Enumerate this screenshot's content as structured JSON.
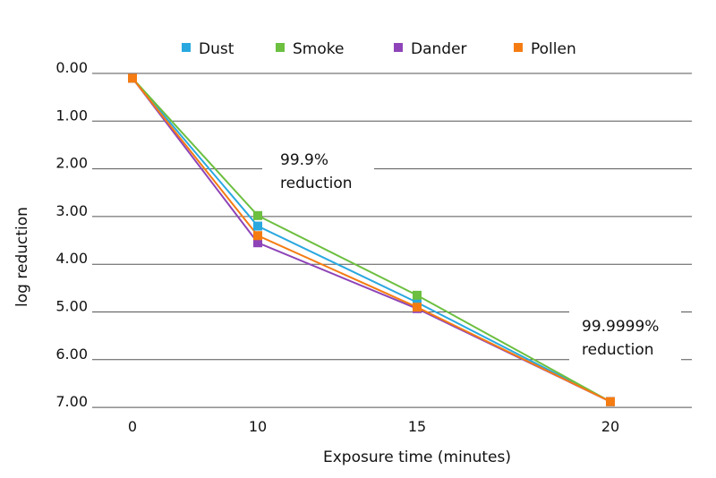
{
  "chart_data": {
    "type": "line",
    "title": "",
    "xlabel": "Exposure time (minutes)",
    "ylabel": "log reduction",
    "categories": [
      "0",
      "10",
      "15",
      "20"
    ],
    "y_tick_labels": [
      "0.00",
      "1.00",
      "2.00",
      "3.00",
      "4.00",
      "5.00",
      "6.00",
      "7.00"
    ],
    "ylim": [
      0,
      7
    ],
    "y_inverted": true,
    "grid": "horizontal",
    "legend_position": "top",
    "series": [
      {
        "name": "Dust",
        "color": "#29a8e0",
        "values": [
          0.1,
          3.2,
          4.8,
          6.88
        ]
      },
      {
        "name": "Smoke",
        "color": "#6cbf3f",
        "values": [
          0.1,
          2.98,
          4.65,
          6.88
        ]
      },
      {
        "name": "Dander",
        "color": "#8e44b8",
        "values": [
          0.1,
          3.55,
          4.93,
          6.88
        ]
      },
      {
        "name": "Pollen",
        "color": "#f57c12",
        "values": [
          0.1,
          3.4,
          4.9,
          6.88
        ]
      }
    ],
    "annotations": [
      {
        "lines": [
          "99.9%",
          "reduction"
        ],
        "at_category": "10"
      },
      {
        "lines": [
          "99.9999%",
          "reduction"
        ],
        "at_category": "20"
      }
    ]
  }
}
